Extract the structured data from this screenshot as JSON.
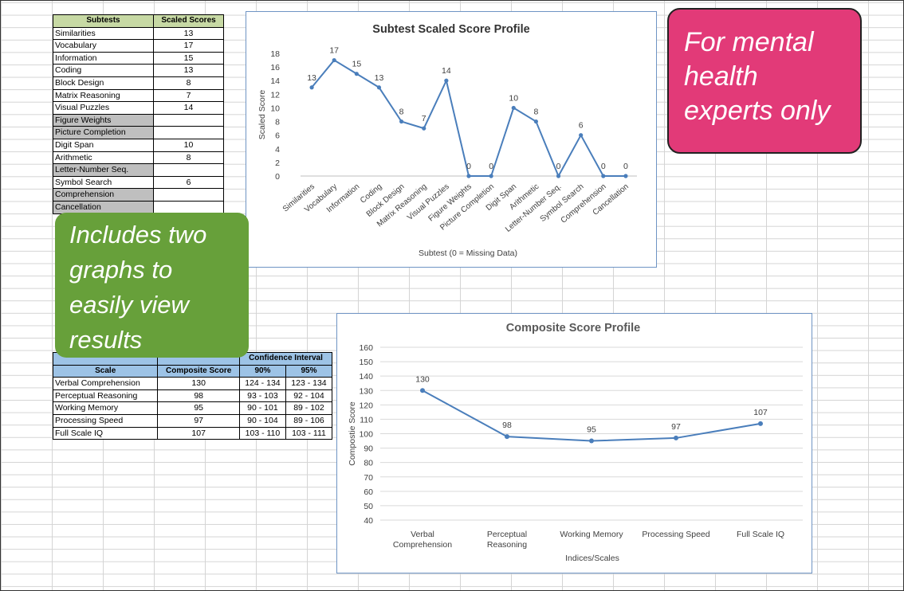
{
  "subtests_table": {
    "headers": [
      "Subtests",
      "Scaled Scores"
    ],
    "rows": [
      {
        "name": "Similarities",
        "score": "13",
        "missing": false
      },
      {
        "name": "Vocabulary",
        "score": "17",
        "missing": false
      },
      {
        "name": "Information",
        "score": "15",
        "missing": false
      },
      {
        "name": "Coding",
        "score": "13",
        "missing": false
      },
      {
        "name": "Block Design",
        "score": "8",
        "missing": false
      },
      {
        "name": "Matrix Reasoning",
        "score": "7",
        "missing": false
      },
      {
        "name": "Visual Puzzles",
        "score": "14",
        "missing": false
      },
      {
        "name": "Figure Weights",
        "score": "",
        "missing": true
      },
      {
        "name": "Picture Completion",
        "score": "",
        "missing": true
      },
      {
        "name": "Digit Span",
        "score": "10",
        "missing": false
      },
      {
        "name": "Arithmetic",
        "score": "8",
        "missing": false
      },
      {
        "name": "Letter-Number Seq.",
        "score": "",
        "missing": true
      },
      {
        "name": "Symbol Search",
        "score": "6",
        "missing": false
      },
      {
        "name": "Comprehension",
        "score": "",
        "missing": true
      },
      {
        "name": "Cancellation",
        "score": "",
        "missing": true
      }
    ]
  },
  "composite_table": {
    "group_header": "Confidence Interval",
    "headers": [
      "Scale",
      "Composite Score",
      "90%",
      "95%"
    ],
    "rows": [
      {
        "scale": "Verbal Comprehension",
        "score": "130",
        "ci90": "124 - 134",
        "ci95": "123 - 134"
      },
      {
        "scale": "Perceptual Reasoning",
        "score": "98",
        "ci90": "93 - 103",
        "ci95": "92 - 104"
      },
      {
        "scale": "Working Memory",
        "score": "95",
        "ci90": "90 - 101",
        "ci95": "89 - 102"
      },
      {
        "scale": "Processing Speed",
        "score": "97",
        "ci90": "90 - 104",
        "ci95": "89 - 106"
      },
      {
        "scale": "Full Scale IQ",
        "score": "107",
        "ci90": "103 - 110",
        "ci95": "103 - 111"
      }
    ]
  },
  "callouts": {
    "pink_lines": [
      "For mental",
      "health",
      "experts only"
    ],
    "green_lines": [
      "Includes two",
      "graphs to",
      "easily view",
      "results"
    ]
  },
  "colors": {
    "line": "#4a7ebb",
    "subtest_header": "#c7d9a4",
    "composite_header": "#9dc3e6",
    "missing_cell": "#bfbfbf",
    "pink_callout": "#e23a78",
    "green_callout": "#67a03a"
  },
  "chart_data": [
    {
      "type": "line",
      "title": "Subtest Scaled Score Profile",
      "xlabel": "Subtest (0 = Missing Data)",
      "ylabel": "Scaled Score",
      "ylim": [
        0,
        18
      ],
      "yticks": [
        0,
        2,
        4,
        6,
        8,
        10,
        12,
        14,
        16,
        18
      ],
      "grid": false,
      "categories": [
        "Similarities",
        "Vocabulary",
        "Information",
        "Coding",
        "Block Design",
        "Matrix Reasoning",
        "Visual Puzzles",
        "Figure Weights",
        "Picture Completion",
        "Digit Span",
        "Arithmetic",
        "Letter-Number Seq.",
        "Symbol Search",
        "Comprehension",
        "Cancellation"
      ],
      "values": [
        13,
        17,
        15,
        13,
        8,
        7,
        14,
        0,
        0,
        10,
        8,
        0,
        6,
        0,
        0
      ]
    },
    {
      "type": "line",
      "title": "Composite Score Profile",
      "xlabel": "Indices/Scales",
      "ylabel": "Compostie Score",
      "ylim": [
        40,
        160
      ],
      "yticks": [
        40,
        50,
        60,
        70,
        80,
        90,
        100,
        110,
        120,
        130,
        140,
        150,
        160
      ],
      "grid": true,
      "categories": [
        "Verbal Comprehension",
        "Perceptual Reasoning",
        "Working Memory",
        "Processing Speed",
        "Full Scale IQ"
      ],
      "category_lines": [
        [
          "Verbal",
          "Comprehension"
        ],
        [
          "Perceptual",
          "Reasoning"
        ],
        [
          "Working Memory"
        ],
        [
          "Processing Speed"
        ],
        [
          "Full Scale IQ"
        ]
      ],
      "values": [
        130,
        98,
        95,
        97,
        107
      ]
    }
  ]
}
